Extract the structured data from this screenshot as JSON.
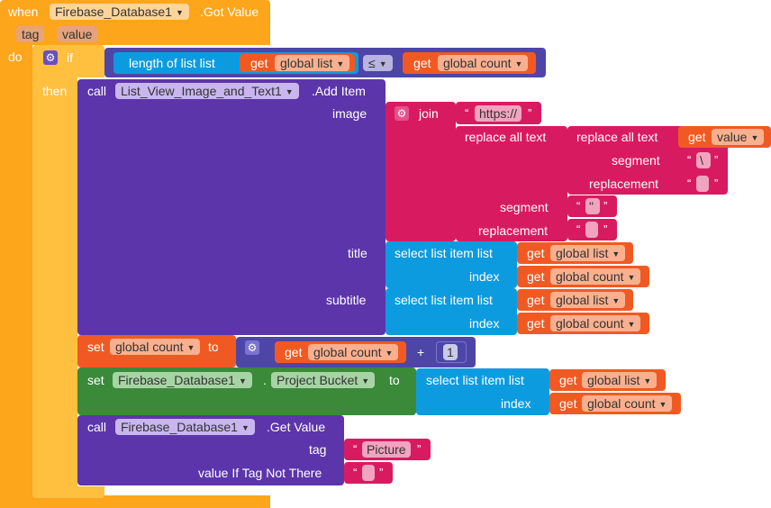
{
  "event": {
    "when": "when",
    "component": "Firebase_Database1",
    "event_name": ".Got Value",
    "params": [
      "tag",
      "value"
    ],
    "do": "do"
  },
  "if_block": {
    "if": "if",
    "then": "then"
  },
  "condition": {
    "length_label": "length of list  list",
    "get": "get",
    "var_list": "global list",
    "op": "≤",
    "var_count": "global count"
  },
  "add_item": {
    "call": "call",
    "component": "List_View_Image_and_Text1",
    "method": ".Add Item",
    "image_label": "image",
    "title_label": "title",
    "subtitle_label": "subtitle"
  },
  "join": {
    "label": "join",
    "url": "https://"
  },
  "replace_outer": {
    "label": "replace all text",
    "segment_label": "segment",
    "replacement_label": "replacement",
    "segment_value": "\"",
    "replacement_value": ""
  },
  "replace_inner": {
    "label": "replace all text",
    "get": "get",
    "var": "value",
    "segment_label": "segment",
    "replacement_label": "replacement",
    "segment_value": "\\",
    "replacement_value": ""
  },
  "select_title": {
    "label": "select list item  list",
    "index_label": "index",
    "get": "get",
    "var_list": "global list",
    "var_index": "global count"
  },
  "select_subtitle": {
    "label": "select list item  list",
    "index_label": "index",
    "get": "get",
    "var_list": "global list",
    "var_index": "global count"
  },
  "set_count": {
    "set": "set",
    "var": "global count",
    "to": "to",
    "get": "get",
    "get_var": "global count",
    "plus": "+",
    "number": "1"
  },
  "set_bucket": {
    "set": "set",
    "component": "Firebase_Database1",
    "dot": ".",
    "property": "Project Bucket",
    "to": "to",
    "select_label": "select list item  list",
    "index_label": "index",
    "get": "get",
    "var_list": "global list",
    "var_index": "global count"
  },
  "get_value": {
    "call": "call",
    "component": "Firebase_Database1",
    "method": ".Get Value",
    "tag_label": "tag",
    "tag_value": "Picture",
    "default_label": "value If Tag Not There",
    "default_value": ""
  },
  "colors": {
    "event": "#f9a825",
    "control": "#ffb11a",
    "component": "#5c35aa",
    "list": "#0d9be0",
    "text": "#d81b60",
    "variable": "#f05a22",
    "math": "#4e46a6",
    "setter": "#3a8a3a"
  }
}
